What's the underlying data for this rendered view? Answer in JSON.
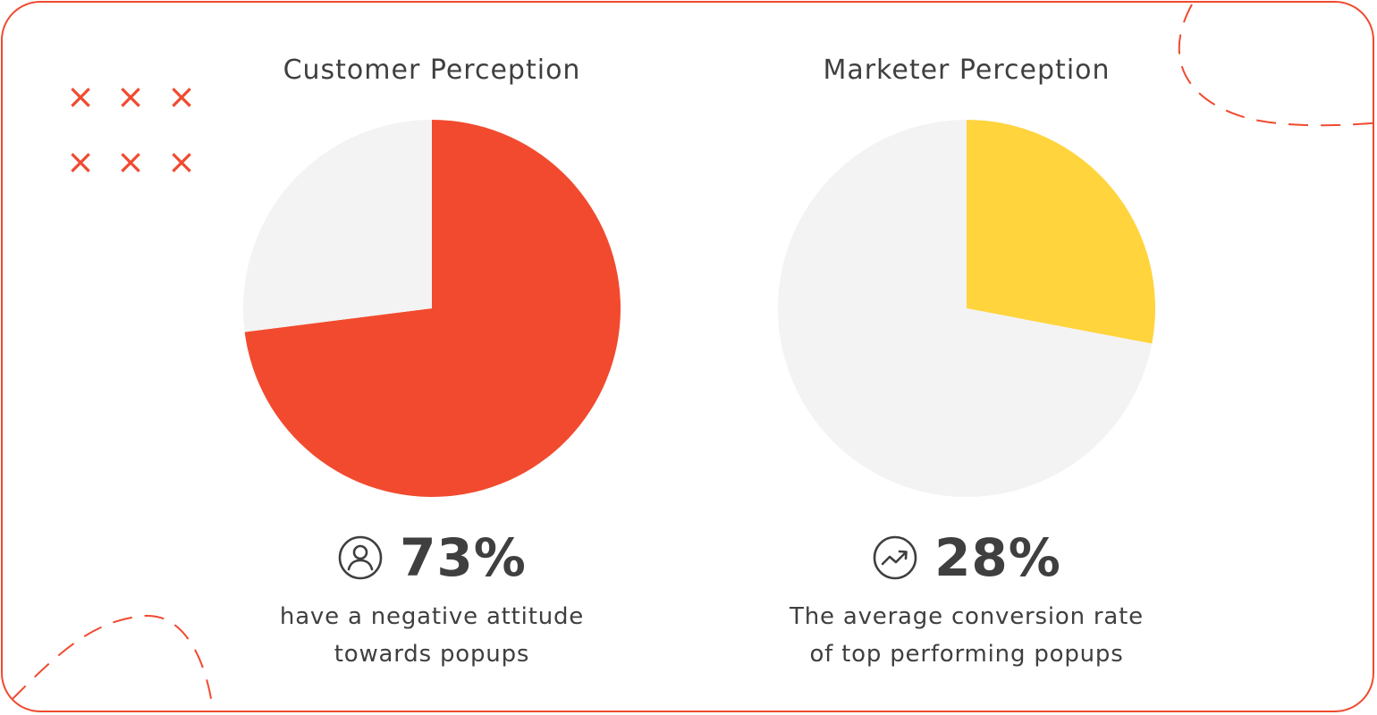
{
  "colors": {
    "border": "#f04a2f",
    "decor": "#f04a2f",
    "customer_slice": "#f24a2e",
    "marketer_slice": "#ffd43d",
    "remainder": "#f3f3f3",
    "text": "#3f3f3f"
  },
  "decor": {
    "mark": "×"
  },
  "chart_data": [
    {
      "type": "pie",
      "title": "Customer Perception",
      "slices": [
        {
          "value": 73,
          "color": "#f24a2e"
        },
        {
          "value": 27,
          "color": "#f3f3f3"
        }
      ],
      "highlight_value": "73%",
      "icon": "person-circle-icon",
      "caption": [
        "have a negative attitude",
        "towards popups"
      ]
    },
    {
      "type": "pie",
      "title": "Marketer Perception",
      "slices": [
        {
          "value": 28,
          "color": "#ffd43d"
        },
        {
          "value": 72,
          "color": "#f3f3f3"
        }
      ],
      "highlight_value": "28%",
      "icon": "trending-up-circle-icon",
      "caption": [
        "The average conversion rate",
        "of top performing popups"
      ]
    }
  ]
}
